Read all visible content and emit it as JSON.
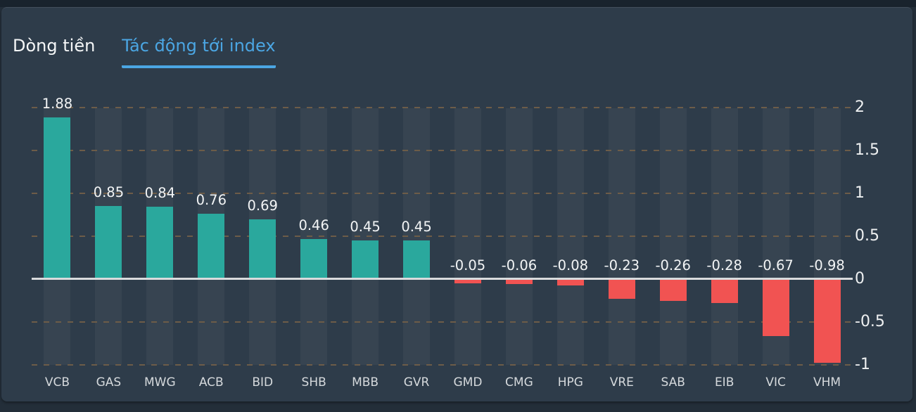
{
  "header": {
    "tabs": [
      {
        "label": "Dòng tiền",
        "active": false
      },
      {
        "label": "Tác động tới index",
        "active": true
      }
    ]
  },
  "chart_data": {
    "type": "bar",
    "title": "Tác động tới index",
    "categories": [
      "VCB",
      "GAS",
      "MWG",
      "ACB",
      "BID",
      "SHB",
      "MBB",
      "GVR",
      "GMD",
      "CMG",
      "HPG",
      "VRE",
      "SAB",
      "EIB",
      "VIC",
      "VHM"
    ],
    "values": [
      1.88,
      0.85,
      0.84,
      0.76,
      0.69,
      0.46,
      0.45,
      0.45,
      -0.05,
      -0.06,
      -0.08,
      -0.23,
      -0.26,
      -0.28,
      -0.67,
      -0.98
    ],
    "value_labels": [
      "1.88",
      "0.85",
      "0.84",
      "0.76",
      "0.69",
      "0.46",
      "0.45",
      "0.45",
      "-0.05",
      "-0.06",
      "-0.08",
      "-0.23",
      "-0.26",
      "-0.28",
      "-0.67",
      "-0.98"
    ],
    "xlabel": "",
    "ylabel": "",
    "ylim": [
      -1.1,
      2.1
    ],
    "yticks": {
      "values": [
        2,
        1.5,
        1,
        0.5,
        0,
        -0.5,
        -1
      ],
      "labels": [
        "2",
        "1.5",
        "1",
        "0.5",
        "0",
        "-0.5",
        "-1"
      ]
    },
    "axis_side": "right",
    "grid": "dashed-horizontal",
    "legend": "none",
    "colors": {
      "positive_bar": "#2aa89d",
      "negative_bar": "#f15352",
      "active_tab": "#4ba6e3",
      "grid_dash": "#6d5c48",
      "zero_line": "#d9dbdd",
      "value_label": "#f3f5f6",
      "category_label": "#d5d9dc",
      "tick_label": "#eef0f1",
      "panel_bg": "#2e3c4a",
      "column_band": "rgba(255,255,255,0.045)"
    }
  }
}
